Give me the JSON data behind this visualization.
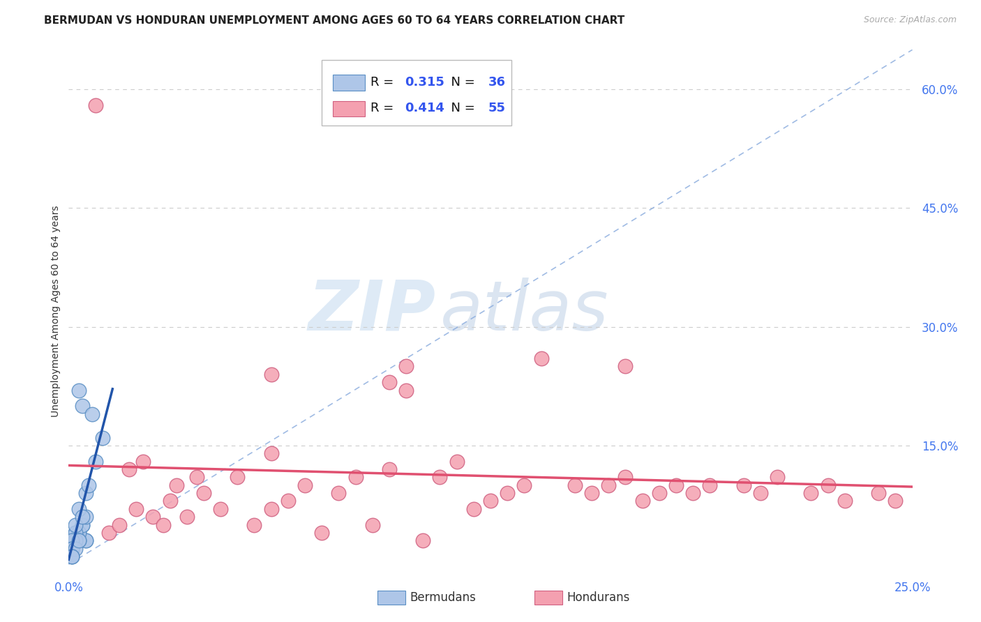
{
  "title": "BERMUDAN VS HONDURAN UNEMPLOYMENT AMONG AGES 60 TO 64 YEARS CORRELATION CHART",
  "source": "Source: ZipAtlas.com",
  "ylabel": "Unemployment Among Ages 60 to 64 years",
  "xlim": [
    0.0,
    0.25
  ],
  "ylim": [
    -0.01,
    0.65
  ],
  "y_ticks": [
    0.15,
    0.3,
    0.45,
    0.6
  ],
  "x_tick_labels": [
    "0.0%",
    "",
    "",
    "",
    "",
    "25.0%"
  ],
  "x_ticks": [
    0.0,
    0.05,
    0.1,
    0.15,
    0.2,
    0.25
  ],
  "grid_color": "#cccccc",
  "background_color": "#ffffff",
  "watermark_zip": "ZIP",
  "watermark_atlas": "atlas",
  "bermuda_color": "#aec6e8",
  "bermuda_edge_color": "#5a8fc4",
  "honduras_color": "#f4a0b0",
  "honduras_edge_color": "#d06080",
  "bermuda_line_color": "#2255aa",
  "honduras_line_color": "#e05070",
  "diag_line_color": "#88aadd",
  "bermuda_R": "0.315",
  "bermuda_N": "36",
  "honduras_R": "0.414",
  "honduras_N": "55",
  "legend_R_color": "#000000",
  "legend_val_color": "#3355ee",
  "right_tick_color": "#4477ee",
  "title_fontsize": 11,
  "label_fontsize": 10,
  "tick_fontsize": 12,
  "bermuda_scatter_x": [
    0.003,
    0.004,
    0.005,
    0.002,
    0.001,
    0.003,
    0.004,
    0.005,
    0.002,
    0.001,
    0.001,
    0.003,
    0.004,
    0.002,
    0.005,
    0.001,
    0.002,
    0.003,
    0.001,
    0.002,
    0.008,
    0.007,
    0.005,
    0.003,
    0.002,
    0.001,
    0.001,
    0.004,
    0.006,
    0.001,
    0.001,
    0.002,
    0.003,
    0.01,
    0.001,
    0.001
  ],
  "bermuda_scatter_y": [
    0.22,
    0.2,
    0.03,
    0.03,
    0.02,
    0.04,
    0.05,
    0.03,
    0.04,
    0.03,
    0.03,
    0.04,
    0.05,
    0.03,
    0.06,
    0.02,
    0.04,
    0.03,
    0.02,
    0.03,
    0.13,
    0.19,
    0.09,
    0.07,
    0.05,
    0.03,
    0.02,
    0.06,
    0.1,
    0.02,
    0.01,
    0.02,
    0.03,
    0.16,
    0.01,
    0.01
  ],
  "honduras_scatter_x": [
    0.008,
    0.012,
    0.015,
    0.02,
    0.025,
    0.03,
    0.035,
    0.04,
    0.045,
    0.05,
    0.055,
    0.06,
    0.065,
    0.07,
    0.075,
    0.08,
    0.085,
    0.09,
    0.095,
    0.1,
    0.105,
    0.11,
    0.115,
    0.12,
    0.125,
    0.13,
    0.135,
    0.14,
    0.15,
    0.155,
    0.16,
    0.165,
    0.17,
    0.175,
    0.18,
    0.185,
    0.19,
    0.2,
    0.205,
    0.21,
    0.22,
    0.225,
    0.23,
    0.24,
    0.245,
    0.018,
    0.022,
    0.028,
    0.032,
    0.038,
    0.06,
    0.095,
    0.1,
    0.165,
    0.06
  ],
  "honduras_scatter_y": [
    0.58,
    0.04,
    0.05,
    0.07,
    0.06,
    0.08,
    0.06,
    0.09,
    0.07,
    0.11,
    0.05,
    0.07,
    0.08,
    0.1,
    0.04,
    0.09,
    0.11,
    0.05,
    0.12,
    0.22,
    0.03,
    0.11,
    0.13,
    0.07,
    0.08,
    0.09,
    0.1,
    0.26,
    0.1,
    0.09,
    0.1,
    0.11,
    0.08,
    0.09,
    0.1,
    0.09,
    0.1,
    0.1,
    0.09,
    0.11,
    0.09,
    0.1,
    0.08,
    0.09,
    0.08,
    0.12,
    0.13,
    0.05,
    0.1,
    0.11,
    0.24,
    0.23,
    0.25,
    0.25,
    0.14
  ],
  "legend_labels": [
    "Bermudans",
    "Hondurans"
  ]
}
